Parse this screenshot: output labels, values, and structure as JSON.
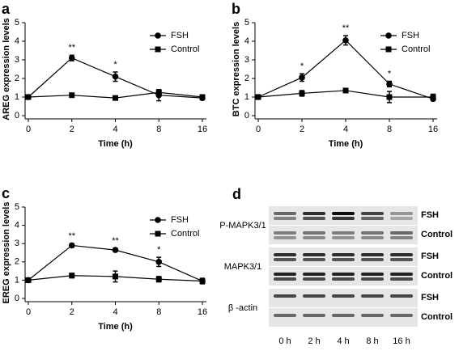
{
  "chart_data": [
    {
      "type": "line",
      "panel": "a",
      "y_label": "AREG expression levels",
      "x_label": "Time (h)",
      "categories": [
        "0",
        "2",
        "4",
        "8",
        "16"
      ],
      "ylim": [
        0,
        5
      ],
      "yticks": [
        0,
        1,
        2,
        3,
        4,
        5
      ],
      "legend": "upper right",
      "series": [
        {
          "name": "FSH",
          "color": "#000000",
          "marker": "circle",
          "values": [
            1.0,
            3.1,
            2.1,
            1.1,
            0.95
          ],
          "errors": [
            0.1,
            0.15,
            0.25,
            0.3,
            0.1
          ]
        },
        {
          "name": "Control",
          "color": "#000000",
          "marker": "square",
          "values": [
            1.0,
            1.1,
            0.95,
            1.25,
            1.0
          ],
          "errors": [
            0.1,
            0.1,
            0.05,
            0.15,
            0.1
          ]
        }
      ],
      "annotations": [
        {
          "text": "**",
          "category": "2"
        },
        {
          "text": "*",
          "category": "4"
        }
      ]
    },
    {
      "type": "line",
      "panel": "b",
      "y_label": "BTC expression levels",
      "x_label": "Time (h)",
      "categories": [
        "0",
        "2",
        "4",
        "8",
        "16"
      ],
      "ylim": [
        0,
        5
      ],
      "yticks": [
        0,
        1,
        2,
        3,
        4,
        5
      ],
      "legend": "upper right",
      "series": [
        {
          "name": "FSH",
          "color": "#000000",
          "marker": "circle",
          "values": [
            1.0,
            2.05,
            4.05,
            1.7,
            0.9
          ],
          "errors": [
            0.1,
            0.2,
            0.25,
            0.15,
            0.1
          ]
        },
        {
          "name": "Control",
          "color": "#000000",
          "marker": "square",
          "values": [
            1.0,
            1.2,
            1.35,
            1.0,
            1.0
          ],
          "errors": [
            0.1,
            0.15,
            0.1,
            0.3,
            0.15
          ]
        }
      ],
      "annotations": [
        {
          "text": "*",
          "category": "2"
        },
        {
          "text": "**",
          "category": "4"
        },
        {
          "text": "*",
          "category": "8"
        }
      ]
    },
    {
      "type": "line",
      "panel": "c",
      "y_label": "EREG expression levels",
      "x_label": "Time (h)",
      "categories": [
        "0",
        "2",
        "4",
        "8",
        "16"
      ],
      "ylim": [
        0,
        5
      ],
      "yticks": [
        0,
        1,
        2,
        3,
        4,
        5
      ],
      "legend": "upper right",
      "series": [
        {
          "name": "FSH",
          "color": "#000000",
          "marker": "circle",
          "values": [
            1.0,
            2.9,
            2.65,
            2.0,
            0.95
          ],
          "errors": [
            0.1,
            0.1,
            0.1,
            0.25,
            0.15
          ]
        },
        {
          "name": "Control",
          "color": "#000000",
          "marker": "square",
          "values": [
            1.0,
            1.25,
            1.2,
            1.05,
            0.95
          ],
          "errors": [
            0.1,
            0.12,
            0.3,
            0.15,
            0.15
          ]
        }
      ],
      "annotations": [
        {
          "text": "**",
          "category": "2"
        },
        {
          "text": "**",
          "category": "4"
        },
        {
          "text": "*",
          "category": "8"
        }
      ]
    }
  ],
  "blot": {
    "panel": "d",
    "proteins": [
      {
        "label": "P-MAPK3/1",
        "rows": [
          "FSH",
          "Control"
        ]
      },
      {
        "label": "MAPK3/1",
        "rows": [
          "FSH",
          "Control"
        ]
      },
      {
        "label": "β -actin",
        "rows": [
          "FSH",
          "Control"
        ]
      }
    ],
    "lanes": [
      "0 h",
      "2 h",
      "4 h",
      "8 h",
      "16 h"
    ]
  }
}
